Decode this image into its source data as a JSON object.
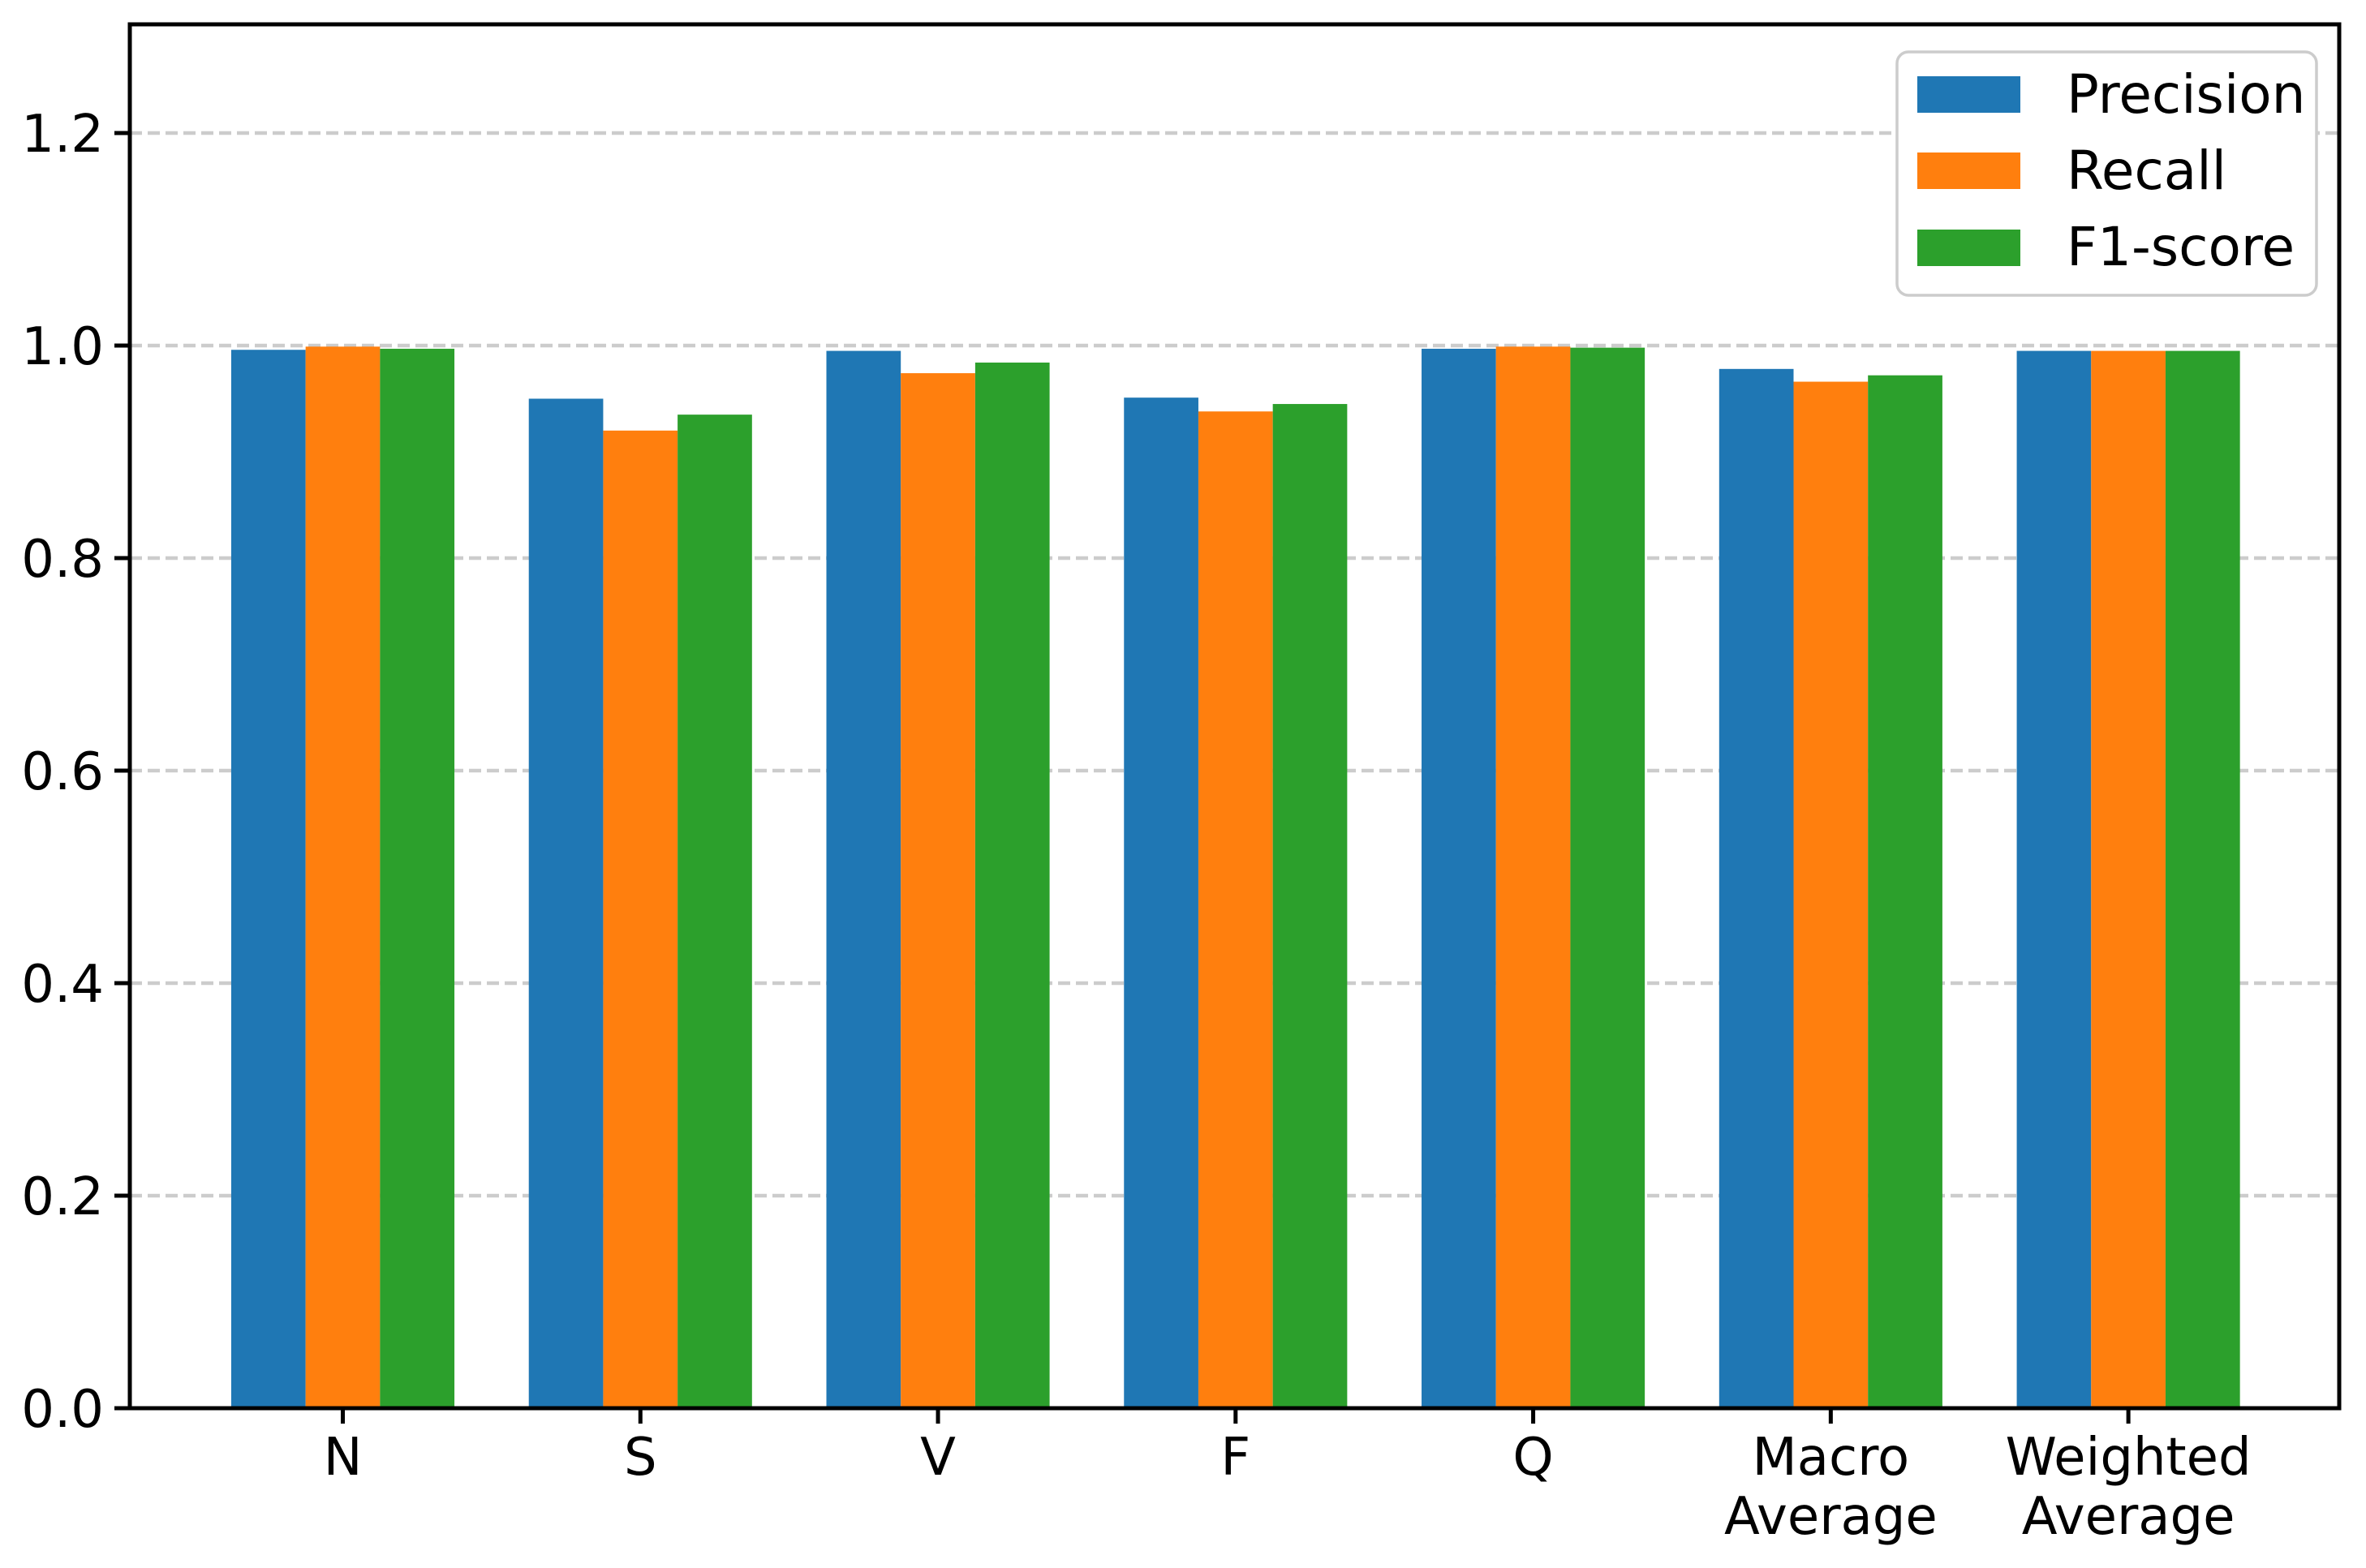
{
  "chart_data": {
    "type": "bar",
    "title": "",
    "xlabel": "",
    "ylabel": "",
    "categories": [
      "N",
      "S",
      "V",
      "F",
      "Q",
      "Macro Average",
      "Weighted Average"
    ],
    "series": [
      {
        "name": "Precision",
        "color": "#1f77b4",
        "values": [
          0.996,
          0.95,
          0.995,
          0.951,
          0.997,
          0.978,
          0.995
        ]
      },
      {
        "name": "Recall",
        "color": "#ff7f0e",
        "values": [
          0.999,
          0.92,
          0.974,
          0.938,
          0.999,
          0.966,
          0.995
        ]
      },
      {
        "name": "F1-score",
        "color": "#2ca02c",
        "values": [
          0.997,
          0.935,
          0.984,
          0.945,
          0.998,
          0.972,
          0.995
        ]
      }
    ],
    "yticks": [
      "0.0",
      "0.2",
      "0.4",
      "0.6",
      "0.8",
      "1.0",
      "1.2"
    ],
    "ylim": [
      0,
      1.302
    ],
    "grid": "horizontal-dashed",
    "gridline_color": "#cccccc",
    "axis_color": "#000000",
    "legend": {
      "position": "upper right",
      "entries": [
        "Precision",
        "Recall",
        "F1-score"
      ],
      "border_color": "#cccccc",
      "background": "#ffffff"
    }
  }
}
